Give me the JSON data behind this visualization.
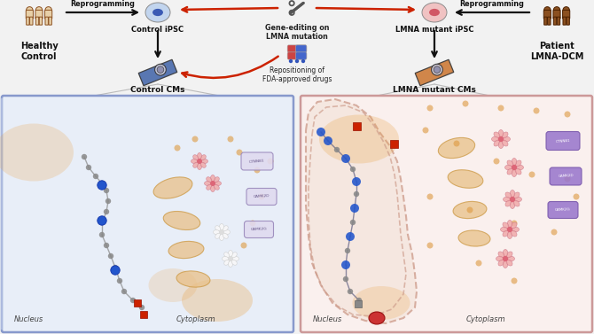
{
  "bg_color": "#f2f2f2",
  "top_section": {
    "healthy_label": "Healthy\nControl",
    "patient_label": "Patient\nLMNA-DCM",
    "reprogramming_left": "Reprogramming",
    "reprogramming_right": "Reprogramming",
    "ipsc_control_label": "Control iPSC",
    "ipsc_mutant_label": "LMNA mutant iPSC",
    "gene_editing_label": "Gene-editing on\nLMNA mutation",
    "repositioning_label": "Repositioning of\nFDA-approved drugs",
    "cms_control_label": "Control CMs",
    "cms_mutant_label": "LMNA mutant CMs"
  },
  "bottom_left": {
    "nucleus_label": "Nucleus",
    "cytoplasm_label": "Cytoplasm",
    "border_color": "#8899cc",
    "nucleus_fill": "#eef2fa",
    "nuclear_border_color": "#8877bb"
  },
  "bottom_right": {
    "nucleus_label": "Nucleus",
    "cytoplasm_label": "Cytoplasm",
    "border_color": "#cc9999",
    "nucleus_fill": "#faf0ee"
  },
  "arrow_color_black": "#111111",
  "arrow_color_red": "#cc2200",
  "human_healthy_color": "#e8d0a8",
  "human_patient_color": "#8B5020",
  "ipsc_control_color": "#c0d4ee",
  "ipsc_mutant_color": "#f0c0c0",
  "cms_control_color": "#4466aa",
  "cms_mutant_color": "#cc7733"
}
